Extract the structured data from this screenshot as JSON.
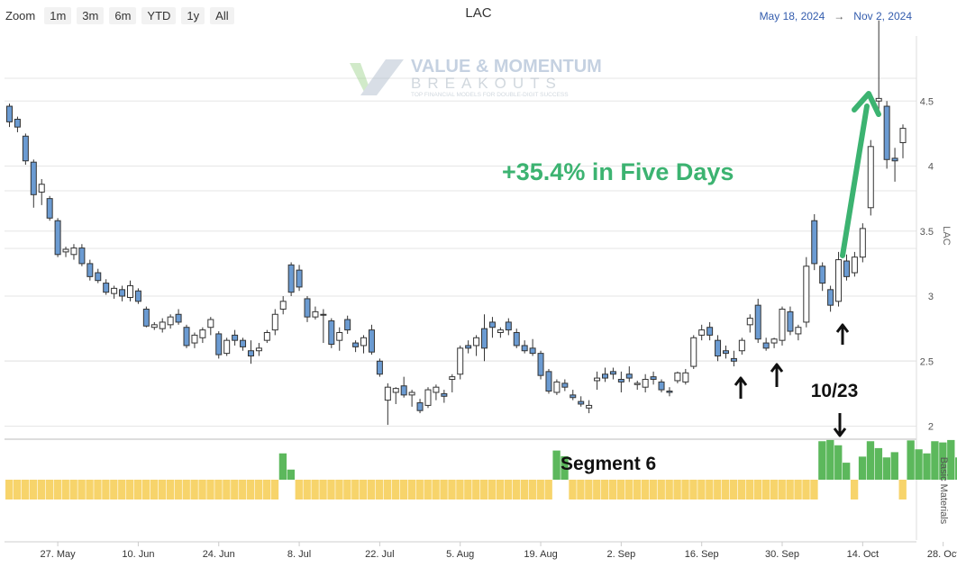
{
  "toolbar": {
    "zoom_label": "Zoom",
    "zoom_buttons": [
      "1m",
      "3m",
      "6m",
      "YTD",
      "1y",
      "All"
    ],
    "range_from": "May 18, 2024",
    "range_arrow": "→",
    "range_to": "Nov 2, 2024"
  },
  "watermark": {
    "line1": "VALUE & MOMENTUM",
    "line2": "BREAKOUTS",
    "tagline": "TOP FINANCIAL MODELS FOR DOUBLE-DIGIT SUCCESS"
  },
  "colors": {
    "down_fill": "#6b9bd2",
    "up_fill": "#ffffff",
    "candle_stroke": "#333333",
    "seg_up": "#5cb85c",
    "seg_down": "#f7d46b",
    "annotation_green": "#3cb371",
    "arrow_black": "#111111"
  },
  "chart_data": [
    {
      "type": "candlestick",
      "title": "LAC",
      "ylabel": "LAC",
      "ylim": [
        1.9,
        5.0
      ],
      "yticks": [
        2,
        2.5,
        3,
        3.5,
        4,
        4.5
      ],
      "x_tick_labels": [
        "27. May",
        "10. Jun",
        "24. Jun",
        "8. Jul",
        "22. Jul",
        "5. Aug",
        "19. Aug",
        "2. Sep",
        "16. Sep",
        "30. Sep",
        "14. Oct",
        "28. Oct"
      ],
      "ohlc": [
        [
          4.46,
          4.48,
          4.3,
          4.34
        ],
        [
          4.36,
          4.38,
          4.26,
          4.3
        ],
        [
          4.23,
          4.25,
          4.01,
          4.04
        ],
        [
          4.03,
          4.05,
          3.68,
          3.78
        ],
        [
          3.8,
          3.9,
          3.7,
          3.86
        ],
        [
          3.75,
          3.77,
          3.58,
          3.6
        ],
        [
          3.58,
          3.6,
          3.3,
          3.32
        ],
        [
          3.34,
          3.38,
          3.3,
          3.36
        ],
        [
          3.32,
          3.4,
          3.28,
          3.37
        ],
        [
          3.37,
          3.4,
          3.23,
          3.25
        ],
        [
          3.25,
          3.28,
          3.12,
          3.15
        ],
        [
          3.18,
          3.21,
          3.1,
          3.12
        ],
        [
          3.1,
          3.13,
          3.01,
          3.03
        ],
        [
          3.02,
          3.08,
          2.98,
          3.06
        ],
        [
          3.05,
          3.08,
          2.96,
          3.0
        ],
        [
          2.99,
          3.12,
          2.96,
          3.08
        ],
        [
          3.04,
          3.06,
          2.94,
          2.96
        ],
        [
          2.9,
          2.92,
          2.76,
          2.77
        ],
        [
          2.76,
          2.8,
          2.74,
          2.78
        ],
        [
          2.75,
          2.83,
          2.72,
          2.8
        ],
        [
          2.78,
          2.86,
          2.75,
          2.84
        ],
        [
          2.86,
          2.9,
          2.78,
          2.8
        ],
        [
          2.76,
          2.78,
          2.6,
          2.62
        ],
        [
          2.64,
          2.72,
          2.6,
          2.7
        ],
        [
          2.68,
          2.76,
          2.64,
          2.74
        ],
        [
          2.76,
          2.84,
          2.7,
          2.82
        ],
        [
          2.71,
          2.73,
          2.52,
          2.55
        ],
        [
          2.56,
          2.68,
          2.54,
          2.66
        ],
        [
          2.7,
          2.74,
          2.62,
          2.66
        ],
        [
          2.66,
          2.68,
          2.58,
          2.61
        ],
        [
          2.58,
          2.66,
          2.48,
          2.54
        ],
        [
          2.58,
          2.64,
          2.54,
          2.6
        ],
        [
          2.66,
          2.74,
          2.64,
          2.72
        ],
        [
          2.74,
          2.9,
          2.7,
          2.86
        ],
        [
          2.9,
          3.0,
          2.86,
          2.96
        ],
        [
          3.24,
          3.26,
          3.0,
          3.03
        ],
        [
          3.2,
          3.24,
          3.04,
          3.07
        ],
        [
          2.98,
          3.0,
          2.8,
          2.84
        ],
        [
          2.84,
          2.92,
          2.82,
          2.88
        ],
        [
          2.86,
          2.9,
          2.64,
          2.86
        ],
        [
          2.81,
          2.83,
          2.6,
          2.63
        ],
        [
          2.66,
          2.76,
          2.58,
          2.72
        ],
        [
          2.82,
          2.85,
          2.71,
          2.74
        ],
        [
          2.64,
          2.66,
          2.57,
          2.61
        ],
        [
          2.62,
          2.7,
          2.56,
          2.68
        ],
        [
          2.74,
          2.78,
          2.55,
          2.57
        ],
        [
          2.5,
          2.52,
          2.38,
          2.4
        ],
        [
          2.2,
          2.33,
          2.01,
          2.3
        ],
        [
          2.26,
          2.3,
          2.17,
          2.29
        ],
        [
          2.31,
          2.38,
          2.22,
          2.24
        ],
        [
          2.24,
          2.28,
          2.15,
          2.26
        ],
        [
          2.18,
          2.21,
          2.1,
          2.12
        ],
        [
          2.16,
          2.3,
          2.14,
          2.28
        ],
        [
          2.26,
          2.32,
          2.2,
          2.3
        ],
        [
          2.25,
          2.28,
          2.18,
          2.23
        ],
        [
          2.36,
          2.4,
          2.26,
          2.38
        ],
        [
          2.4,
          2.62,
          2.36,
          2.6
        ],
        [
          2.62,
          2.66,
          2.56,
          2.6
        ],
        [
          2.62,
          2.7,
          2.54,
          2.68
        ],
        [
          2.75,
          2.86,
          2.5,
          2.6
        ],
        [
          2.8,
          2.84,
          2.68,
          2.76
        ],
        [
          2.72,
          2.76,
          2.68,
          2.74
        ],
        [
          2.8,
          2.83,
          2.7,
          2.74
        ],
        [
          2.72,
          2.75,
          2.6,
          2.62
        ],
        [
          2.62,
          2.66,
          2.56,
          2.58
        ],
        [
          2.6,
          2.67,
          2.54,
          2.56
        ],
        [
          2.56,
          2.58,
          2.36,
          2.39
        ],
        [
          2.42,
          2.44,
          2.25,
          2.27
        ],
        [
          2.26,
          2.36,
          2.24,
          2.34
        ],
        [
          2.33,
          2.36,
          2.27,
          2.3
        ],
        [
          2.24,
          2.28,
          2.2,
          2.22
        ],
        [
          2.19,
          2.23,
          2.15,
          2.17
        ],
        [
          2.14,
          2.2,
          2.1,
          2.16
        ],
        [
          2.35,
          2.42,
          2.28,
          2.37
        ],
        [
          2.4,
          2.45,
          2.34,
          2.37
        ],
        [
          2.42,
          2.45,
          2.36,
          2.4
        ],
        [
          2.36,
          2.42,
          2.26,
          2.34
        ],
        [
          2.4,
          2.46,
          2.34,
          2.37
        ],
        [
          2.32,
          2.35,
          2.28,
          2.33
        ],
        [
          2.3,
          2.4,
          2.26,
          2.36
        ],
        [
          2.38,
          2.42,
          2.32,
          2.36
        ],
        [
          2.34,
          2.36,
          2.26,
          2.28
        ],
        [
          2.27,
          2.3,
          2.23,
          2.26
        ],
        [
          2.35,
          2.42,
          2.33,
          2.41
        ],
        [
          2.34,
          2.44,
          2.32,
          2.41
        ],
        [
          2.46,
          2.7,
          2.44,
          2.68
        ],
        [
          2.7,
          2.78,
          2.66,
          2.74
        ],
        [
          2.76,
          2.8,
          2.66,
          2.7
        ],
        [
          2.66,
          2.7,
          2.5,
          2.54
        ],
        [
          2.58,
          2.62,
          2.52,
          2.56
        ],
        [
          2.52,
          2.58,
          2.46,
          2.5
        ],
        [
          2.58,
          2.68,
          2.55,
          2.66
        ],
        [
          2.78,
          2.86,
          2.72,
          2.83
        ],
        [
          2.93,
          2.98,
          2.64,
          2.67
        ],
        [
          2.64,
          2.68,
          2.58,
          2.6
        ],
        [
          2.64,
          2.68,
          2.6,
          2.67
        ],
        [
          2.66,
          2.92,
          2.62,
          2.9
        ],
        [
          2.88,
          2.92,
          2.7,
          2.73
        ],
        [
          2.71,
          2.78,
          2.66,
          2.76
        ],
        [
          2.8,
          3.3,
          2.76,
          3.23
        ],
        [
          3.58,
          3.63,
          3.2,
          3.25
        ],
        [
          3.23,
          3.26,
          3.04,
          3.1
        ],
        [
          3.05,
          3.08,
          2.88,
          2.93
        ],
        [
          2.96,
          3.34,
          2.92,
          3.28
        ],
        [
          3.27,
          3.32,
          3.12,
          3.15
        ],
        [
          3.18,
          3.34,
          3.15,
          3.3
        ],
        [
          3.3,
          3.56,
          3.26,
          3.52
        ],
        [
          3.68,
          4.2,
          3.62,
          4.15
        ],
        [
          4.5,
          5.12,
          4.38,
          4.52
        ],
        [
          4.46,
          4.5,
          3.98,
          4.05
        ],
        [
          4.06,
          4.14,
          3.88,
          4.04
        ],
        [
          4.18,
          4.32,
          4.06,
          4.29
        ]
      ],
      "segment": {
        "label": "Basic Materials",
        "annotation": "Segment 6",
        "values": [
          -1,
          -1,
          -1,
          -1,
          -1,
          -1,
          -1,
          -1,
          -1,
          -1,
          -1,
          -1,
          -1,
          -1,
          -1,
          -1,
          -1,
          -1,
          -1,
          -1,
          -1,
          -1,
          -1,
          -1,
          -1,
          -1,
          -1,
          -1,
          -1,
          -1,
          -1,
          -1,
          -1,
          -1,
          0.65,
          0.25,
          -1,
          -1,
          -1,
          -1,
          -1,
          -1,
          -1,
          -1,
          -1,
          -1,
          -1,
          -1,
          -1,
          -1,
          -1,
          -1,
          -1,
          -1,
          -1,
          -1,
          -1,
          -1,
          -1,
          -1,
          -1,
          -1,
          -1,
          -1,
          -1,
          -1,
          -1,
          -1,
          0.72,
          0.58,
          -1,
          -1,
          -1,
          -1,
          -1,
          -1,
          -1,
          -1,
          -1,
          -1,
          -1,
          -1,
          -1,
          -1,
          -1,
          -1,
          -1,
          -1,
          -1,
          -1,
          -1,
          -1,
          -1,
          -1,
          -1,
          -1,
          -1,
          -1,
          -1,
          -1,
          -1,
          0.95,
          0.98,
          0.85,
          0.42,
          -1,
          0.57,
          0.95,
          0.78,
          0.55,
          0.68,
          -1,
          0.97,
          0.75,
          0.65,
          0.95,
          0.92,
          0.98,
          0.55,
          0.98,
          0.95,
          0.92,
          0.95,
          0.98,
          0.95,
          0.45
        ]
      },
      "annotations": {
        "headline": "+35.4% in Five Days",
        "date_label": "10/23"
      }
    }
  ]
}
